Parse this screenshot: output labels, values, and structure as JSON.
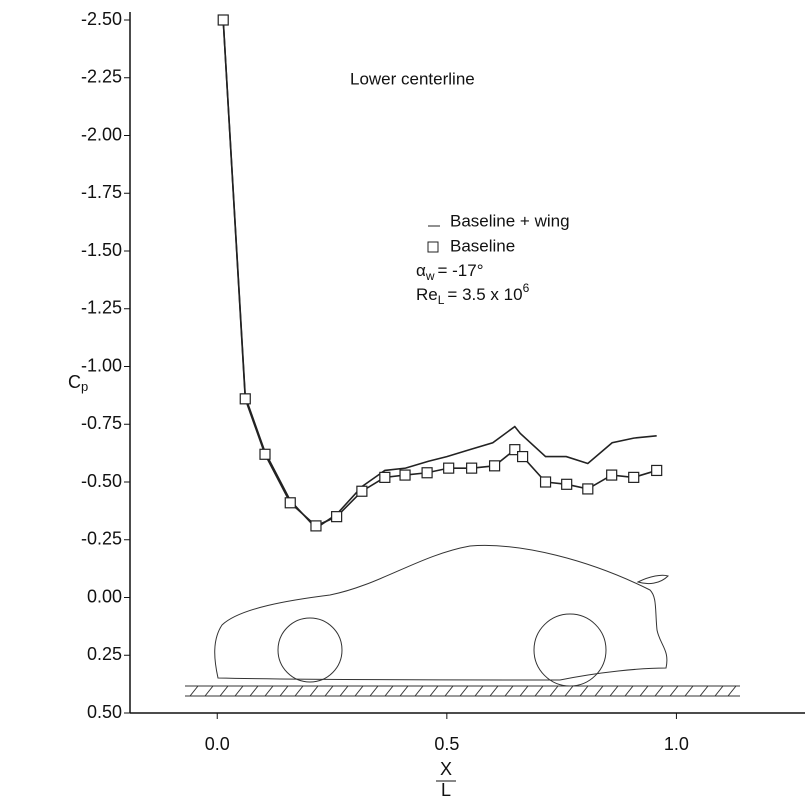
{
  "chart_data": {
    "type": "line",
    "title": "Lower centerline",
    "y_label": {
      "main": "C",
      "sub": "p"
    },
    "x_label": {
      "num": "X",
      "den": "L"
    },
    "annotations": [
      {
        "main": "α",
        "sub": "w",
        "rest": "= -17°"
      },
      {
        "main": "Re",
        "sub": "L",
        "rest": "= 3.5 x 10",
        "sup": "6"
      }
    ],
    "xlim": [
      -0.19,
      1.28
    ],
    "ylim": [
      -2.5,
      0.5
    ],
    "y_inverted": true,
    "xticks": [
      {
        "value": 0,
        "label": "0.0"
      },
      {
        "value": 0.5,
        "label": "0.5"
      },
      {
        "value": 1,
        "label": "1.0"
      }
    ],
    "yticks": [
      {
        "value": -2.5,
        "label": "-2.50"
      },
      {
        "value": -2.25,
        "label": "-2.25"
      },
      {
        "value": -2,
        "label": "-2.00"
      },
      {
        "value": -1.75,
        "label": "-1.75"
      },
      {
        "value": -1.5,
        "label": "-1.50"
      },
      {
        "value": -1.25,
        "label": "-1.25"
      },
      {
        "value": -1,
        "label": "-1.00"
      },
      {
        "value": -0.75,
        "label": "-0.75"
      },
      {
        "value": -0.5,
        "label": "-0.50"
      },
      {
        "value": -0.25,
        "label": "-0.25"
      },
      {
        "value": 0,
        "label": "0.00"
      },
      {
        "value": 0.25,
        "label": "0.25"
      },
      {
        "value": 0.5,
        "label": "0.50"
      }
    ],
    "series": [
      {
        "name": "Baseline + wing",
        "color": "#222222",
        "marker": "none",
        "x": [
          0.013,
          0.061,
          0.104,
          0.159,
          0.215,
          0.26,
          0.315,
          0.365,
          0.41,
          0.46,
          0.5,
          0.55,
          0.6,
          0.648,
          0.66,
          0.715,
          0.76,
          0.807,
          0.86,
          0.907,
          0.957
        ],
        "values": [
          -2.5,
          -0.87,
          -0.63,
          -0.42,
          -0.3,
          -0.36,
          -0.48,
          -0.55,
          -0.56,
          -0.59,
          -0.61,
          -0.64,
          -0.67,
          -0.74,
          -0.71,
          -0.61,
          -0.61,
          -0.58,
          -0.67,
          -0.69,
          -0.7
        ]
      },
      {
        "name": "Baseline",
        "color": "#222222",
        "marker": "square",
        "x": [
          0.013,
          0.061,
          0.104,
          0.159,
          0.215,
          0.26,
          0.315,
          0.365,
          0.409,
          0.457,
          0.504,
          0.554,
          0.604,
          0.648,
          0.665,
          0.715,
          0.761,
          0.807,
          0.859,
          0.907,
          0.957
        ],
        "values": [
          -2.5,
          -0.86,
          -0.62,
          -0.41,
          -0.31,
          -0.35,
          -0.46,
          -0.52,
          -0.53,
          -0.54,
          -0.56,
          -0.56,
          -0.57,
          -0.64,
          -0.61,
          -0.5,
          -0.49,
          -0.47,
          -0.53,
          -0.52,
          -0.55
        ]
      }
    ]
  }
}
